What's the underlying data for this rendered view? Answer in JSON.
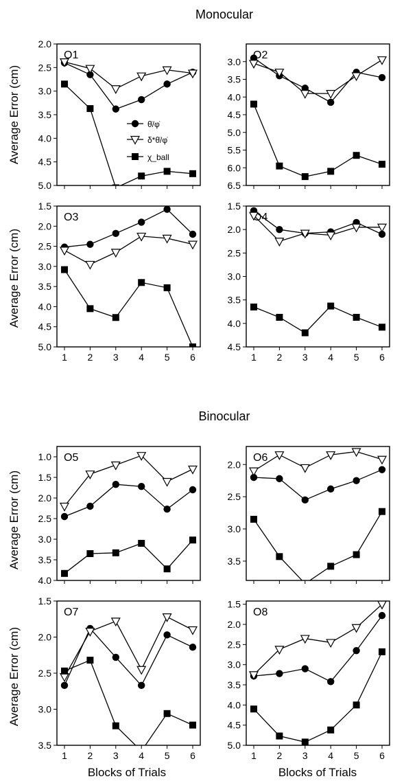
{
  "figure": {
    "section_titles": [
      "Monocular",
      "Binocular"
    ],
    "ylabel": "Average Error (cm)",
    "xlabel": "Blocks of Trials",
    "legend": [
      {
        "label": "θ̇/φ̇",
        "marker": "circle"
      },
      {
        "label": "δ*θ̇/φ̇",
        "marker": "triangle-down"
      },
      {
        "label": "χ_ball",
        "marker": "square"
      }
    ]
  },
  "chart_data": [
    {
      "type": "line",
      "title": "O1",
      "x": [
        1,
        2,
        3,
        4,
        5,
        6
      ],
      "ylim": [
        2.0,
        5.0
      ],
      "y_inverted": true,
      "yticks": [
        "2.0",
        "2.5",
        "3.0",
        "3.5",
        "4.0",
        "4.5",
        "5.0"
      ],
      "series": [
        {
          "name": "θ̇/φ̇",
          "marker": "circle",
          "values": [
            2.4,
            2.65,
            3.38,
            3.18,
            2.85,
            2.6
          ]
        },
        {
          "name": "δ*θ̇/φ̇",
          "marker": "triangle-down",
          "values": [
            2.38,
            2.52,
            2.95,
            2.68,
            2.55,
            2.62
          ]
        },
        {
          "name": "χ_ball",
          "marker": "square",
          "values": [
            2.85,
            3.37,
            5.05,
            4.8,
            4.7,
            4.75
          ]
        }
      ]
    },
    {
      "type": "line",
      "title": "O2",
      "x": [
        1,
        2,
        3,
        4,
        5,
        6
      ],
      "ylim": [
        2.5,
        6.5
      ],
      "y_inverted": true,
      "yticks": [
        "3.0",
        "3.5",
        "4.0",
        "4.5",
        "5.0",
        "5.5",
        "6.0",
        "6.5"
      ],
      "series": [
        {
          "name": "θ̇/φ̇",
          "marker": "circle",
          "values": [
            2.9,
            3.4,
            3.75,
            4.15,
            3.3,
            3.45
          ]
        },
        {
          "name": "δ*θ̇/φ̇",
          "marker": "triangle-down",
          "values": [
            3.05,
            3.3,
            3.9,
            3.9,
            3.4,
            2.95
          ]
        },
        {
          "name": "χ_ball",
          "marker": "square",
          "values": [
            4.2,
            5.95,
            6.25,
            6.1,
            5.65,
            5.9
          ]
        }
      ]
    },
    {
      "type": "line",
      "title": "O3",
      "x": [
        1,
        2,
        3,
        4,
        5,
        6
      ],
      "ylim": [
        1.5,
        5.0
      ],
      "y_inverted": true,
      "yticks": [
        "1.5",
        "2.0",
        "2.5",
        "3.0",
        "3.5",
        "4.0",
        "4.5",
        "5.0"
      ],
      "series": [
        {
          "name": "θ̇/φ̇",
          "marker": "circle",
          "values": [
            2.52,
            2.45,
            2.18,
            1.9,
            1.58,
            2.2
          ]
        },
        {
          "name": "δ*θ̇/φ̇",
          "marker": "triangle-down",
          "values": [
            2.6,
            2.95,
            2.65,
            2.25,
            2.3,
            2.45
          ]
        },
        {
          "name": "χ_ball",
          "marker": "square",
          "values": [
            3.08,
            4.05,
            4.27,
            3.4,
            3.53,
            5.0
          ]
        }
      ]
    },
    {
      "type": "line",
      "title": "O4",
      "x": [
        1,
        2,
        3,
        4,
        5,
        6
      ],
      "ylim": [
        1.5,
        4.5
      ],
      "y_inverted": true,
      "yticks": [
        "1.5",
        "2.0",
        "2.5",
        "3.0",
        "3.5",
        "4.0",
        "4.5"
      ],
      "series": [
        {
          "name": "θ̇/φ̇",
          "marker": "circle",
          "values": [
            1.6,
            2.0,
            2.08,
            2.05,
            1.85,
            2.1
          ]
        },
        {
          "name": "δ*θ̇/φ̇",
          "marker": "triangle-down",
          "values": [
            1.7,
            2.25,
            2.08,
            2.12,
            1.95,
            1.95
          ]
        },
        {
          "name": "χ_ball",
          "marker": "square",
          "values": [
            3.65,
            3.87,
            4.2,
            3.63,
            3.87,
            4.08
          ]
        }
      ]
    },
    {
      "type": "line",
      "title": "O5",
      "x": [
        1,
        2,
        3,
        4,
        5,
        6
      ],
      "ylim": [
        0.75,
        4.0
      ],
      "y_inverted": true,
      "yticks": [
        "1.0",
        "1.5",
        "2.0",
        "2.5",
        "3.0",
        "3.5",
        "4.0"
      ],
      "series": [
        {
          "name": "θ̇/φ̇",
          "marker": "circle",
          "values": [
            2.45,
            2.2,
            1.67,
            1.72,
            2.27,
            1.8
          ]
        },
        {
          "name": "δ*θ̇/φ̇",
          "marker": "triangle-down",
          "values": [
            2.2,
            1.42,
            1.2,
            0.97,
            1.6,
            1.3
          ]
        },
        {
          "name": "χ_ball",
          "marker": "square",
          "values": [
            3.83,
            3.35,
            3.33,
            3.1,
            3.72,
            3.02
          ]
        }
      ]
    },
    {
      "type": "line",
      "title": "O6",
      "x": [
        1,
        2,
        3,
        4,
        5,
        6
      ],
      "ylim": [
        1.72,
        3.8
      ],
      "y_inverted": true,
      "yticks": [
        "2.0",
        "2.5",
        "3.0",
        "3.5"
      ],
      "series": [
        {
          "name": "θ̇/φ̇",
          "marker": "circle",
          "values": [
            2.2,
            2.22,
            2.55,
            2.38,
            2.25,
            2.08
          ]
        },
        {
          "name": "δ*θ̇/φ̇",
          "marker": "triangle-down",
          "values": [
            2.1,
            1.85,
            2.05,
            1.85,
            1.8,
            1.92
          ]
        },
        {
          "name": "χ_ball",
          "marker": "square",
          "values": [
            2.85,
            3.43,
            3.85,
            3.58,
            3.4,
            2.73
          ]
        }
      ]
    },
    {
      "type": "line",
      "title": "O7",
      "x": [
        1,
        2,
        3,
        4,
        5,
        6
      ],
      "ylim": [
        1.5,
        3.5
      ],
      "y_inverted": true,
      "yticks": [
        "1.5",
        "2.0",
        "2.5",
        "3.0",
        "3.5"
      ],
      "series": [
        {
          "name": "θ̇/φ̇",
          "marker": "circle",
          "values": [
            2.67,
            1.88,
            2.28,
            2.67,
            1.97,
            2.14
          ]
        },
        {
          "name": "δ*θ̇/φ̇",
          "marker": "triangle-down",
          "values": [
            2.55,
            1.92,
            1.78,
            2.45,
            1.72,
            1.9
          ]
        },
        {
          "name": "χ_ball",
          "marker": "square",
          "values": [
            2.47,
            2.32,
            3.23,
            3.58,
            3.06,
            3.22
          ]
        }
      ]
    },
    {
      "type": "line",
      "title": "O8",
      "x": [
        1,
        2,
        3,
        4,
        5,
        6
      ],
      "ylim": [
        1.42,
        5.0
      ],
      "y_inverted": true,
      "yticks": [
        "1.5",
        "2.0",
        "2.5",
        "3.0",
        "3.5",
        "4.0",
        "4.5",
        "5.0"
      ],
      "series": [
        {
          "name": "θ̇/φ̇",
          "marker": "circle",
          "values": [
            3.28,
            3.22,
            3.1,
            3.42,
            2.65,
            1.78
          ]
        },
        {
          "name": "δ*θ̇/φ̇",
          "marker": "triangle-down",
          "values": [
            3.25,
            2.62,
            2.35,
            2.45,
            2.08,
            1.5
          ]
        },
        {
          "name": "χ_ball",
          "marker": "square",
          "values": [
            4.1,
            4.77,
            4.92,
            4.62,
            4.0,
            2.68
          ]
        }
      ]
    }
  ]
}
